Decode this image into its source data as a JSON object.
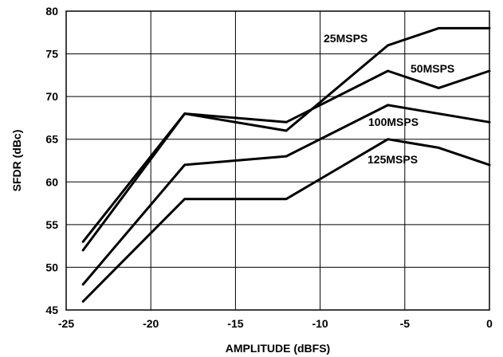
{
  "chart_data": {
    "type": "line",
    "title": "",
    "xlabel": "AMPLITUDE (dBFS)",
    "ylabel": "SFDR (dBc)",
    "xlim": [
      -25,
      0
    ],
    "ylim": [
      45,
      80
    ],
    "xticks": [
      "-25",
      "-20",
      "-15",
      "-10",
      "-5",
      "0"
    ],
    "yticks": [
      "45",
      "50",
      "55",
      "60",
      "65",
      "70",
      "75",
      "80"
    ],
    "grid": true,
    "series": [
      {
        "name": "25MSPS",
        "x": [
          -24,
          -18,
          -12,
          -6,
          -3,
          0
        ],
        "y": [
          52,
          68,
          66,
          76,
          78,
          78
        ]
      },
      {
        "name": "50MSPS",
        "x": [
          -24,
          -18,
          -12,
          -6,
          -3,
          0
        ],
        "y": [
          53,
          68,
          67,
          73,
          71,
          73
        ]
      },
      {
        "name": "100MSPS",
        "x": [
          -24,
          -18,
          -12,
          -6,
          0
        ],
        "y": [
          48,
          62,
          63,
          69,
          67
        ]
      },
      {
        "name": "125MSPS",
        "x": [
          -24,
          -18,
          -12,
          -6,
          -3,
          0
        ],
        "y": [
          46,
          58,
          58,
          65,
          64,
          62
        ]
      }
    ]
  }
}
